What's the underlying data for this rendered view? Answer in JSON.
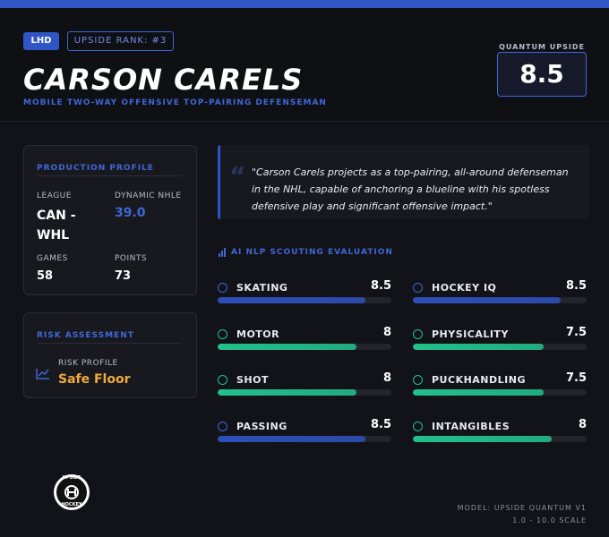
{
  "header": {
    "position": "LHD",
    "rank": "UPSIDE RANK: #3",
    "name": "CARSON CARELS",
    "subtitle": "MOBILE TWO-WAY OFFENSIVE TOP-PAIRING DEFENSEMAN",
    "upside_label": "QUANTUM UPSIDE",
    "upside_value": 8.5
  },
  "production": {
    "title": "PRODUCTION PROFILE",
    "stats": [
      {
        "label": "LEAGUE",
        "value": "CAN - WHL"
      },
      {
        "label": "DYNAMIC NHLE",
        "value": "39.0"
      },
      {
        "label": "GAMES",
        "value": "58"
      },
      {
        "label": "POINTS",
        "value": "73"
      }
    ]
  },
  "risk": {
    "title": "RISK ASSESSMENT",
    "label": "RISK PROFILE",
    "value": "Safe Floor"
  },
  "quote": "\"Carson Carels projects as a top-pairing, all-around defenseman in the NHL, capable of anchoring a blueline with his spotless defensive play and significant offensive impact.\"",
  "evaluation": {
    "title": "AI NLP SCOUTING EVALUATION",
    "xlim": [
      0,
      10
    ],
    "skills": [
      {
        "name": "SKATING",
        "value": 8.5,
        "color": "#2d4fb8"
      },
      {
        "name": "HOCKEY IQ",
        "value": 8.5,
        "color": "#2d4fb8"
      },
      {
        "name": "MOTOR",
        "value": 8,
        "color": "#22c08a"
      },
      {
        "name": "PHYSICALITY",
        "value": 7.5,
        "color": "#22c08a"
      },
      {
        "name": "SHOT",
        "value": 8,
        "color": "#22c08a"
      },
      {
        "name": "PUCKHANDLING",
        "value": 7.5,
        "color": "#22c08a"
      },
      {
        "name": "PASSING",
        "value": 8.5,
        "color": "#2d4fb8"
      },
      {
        "name": "INTANGIBLES",
        "value": 8,
        "color": "#22c08a"
      }
    ]
  },
  "logo": {
    "top": "UPSIDE",
    "bottom": "HOCKEY"
  },
  "footer": {
    "model": "MODEL: UPSIDE QUANTUM V1",
    "scale": "1.0 - 10.0 SCALE"
  }
}
